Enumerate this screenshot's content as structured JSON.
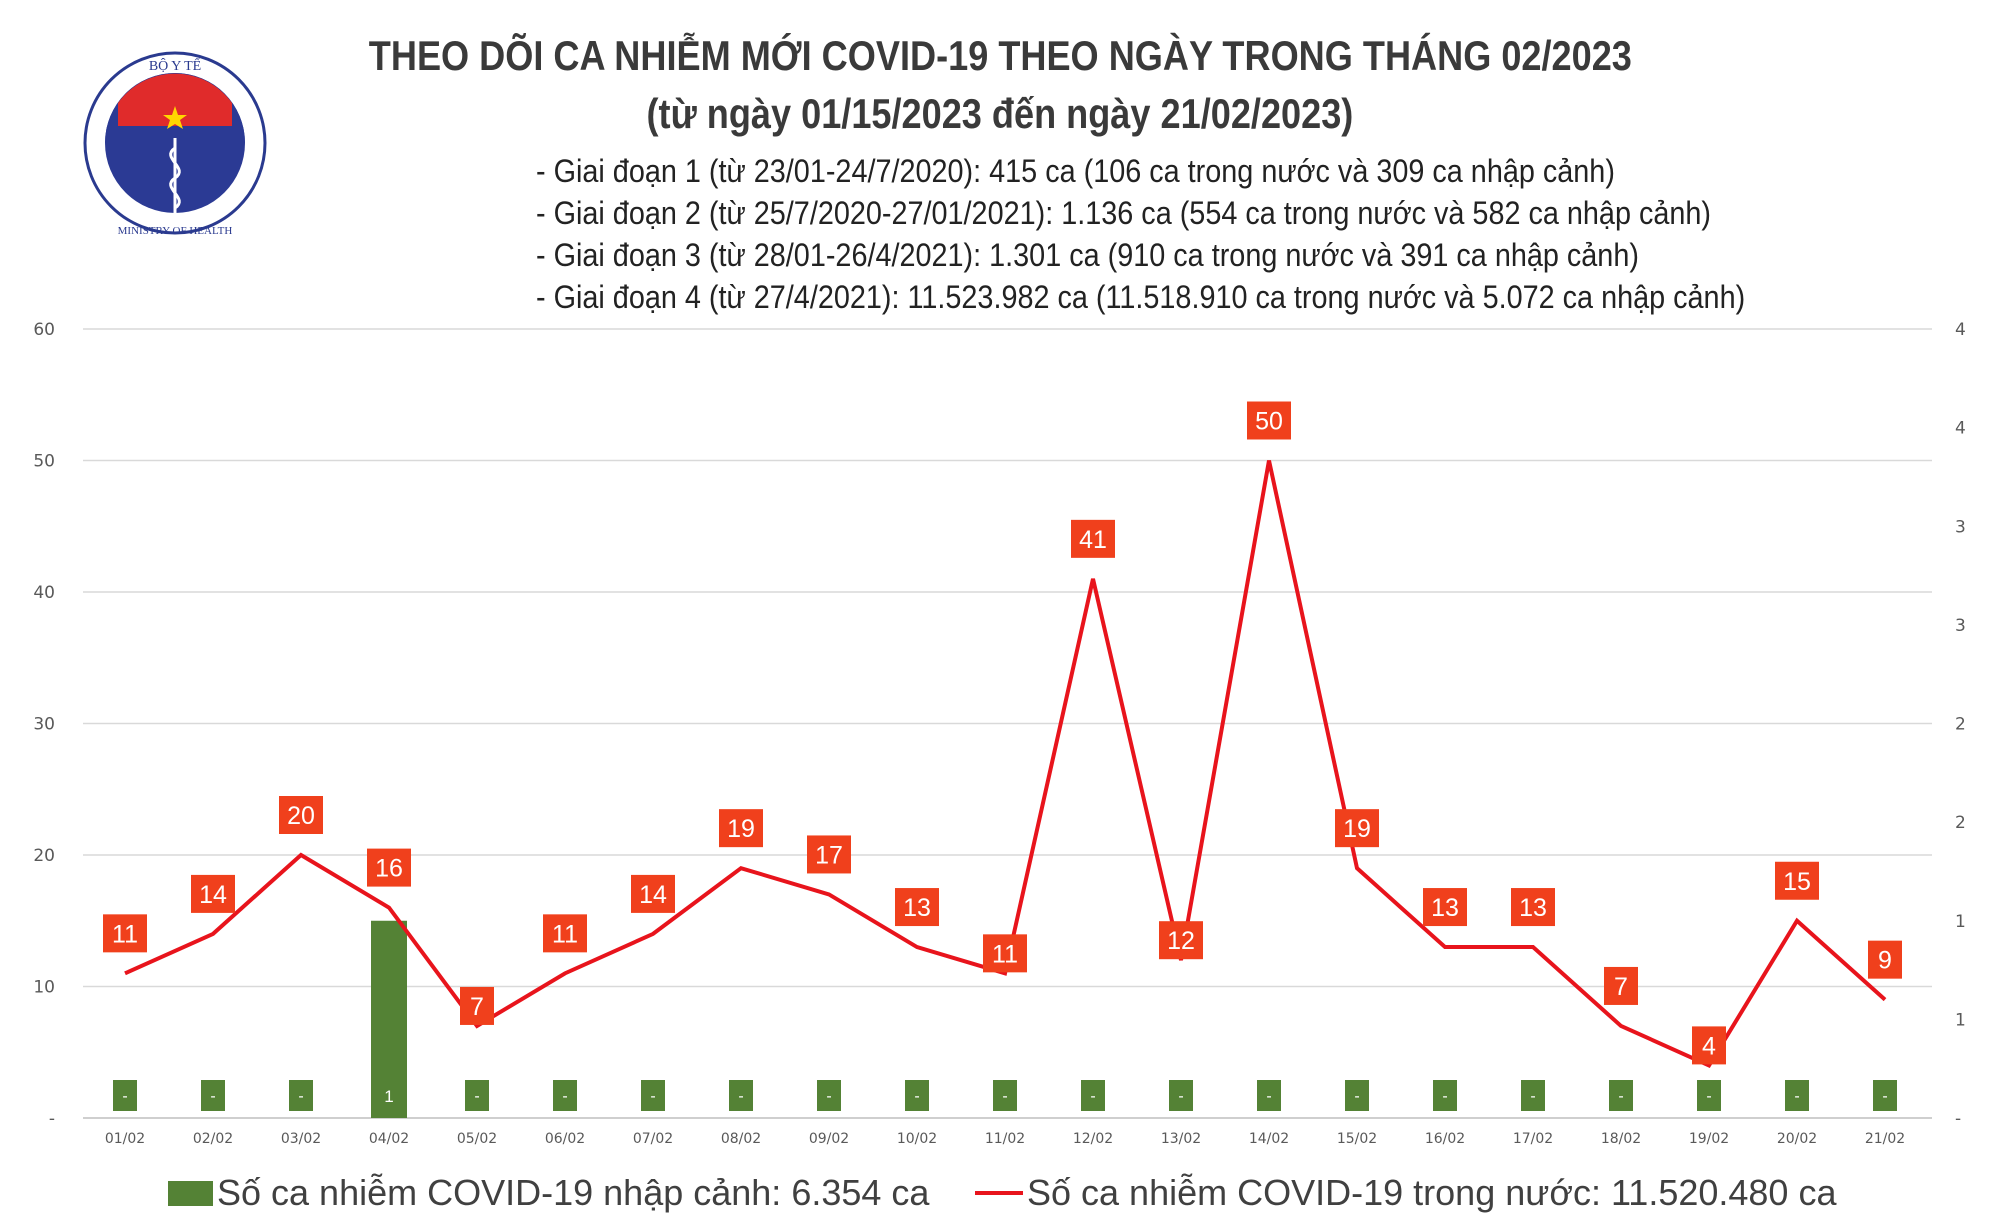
{
  "logo": {
    "text_top": "BỘ Y TẾ",
    "text_bottom": "MINISTRY OF HEALTH"
  },
  "title": {
    "line1": "THEO DÕI CA NHIỄM MỚI COVID-19 THEO NGÀY TRONG THÁNG 02/2023",
    "line2": "(từ ngày 01/15/2023 đến ngày 21/02/2023)"
  },
  "summary": [
    "- Giai đoạn 1 (từ 23/01-24/7/2020): 415 ca (106 ca trong nước và 309 ca nhập cảnh)",
    "- Giai đoạn 2 (từ 25/7/2020-27/01/2021): 1.136 ca (554 ca trong nước và 582 ca nhập cảnh)",
    "- Giai đoạn 3 (từ 28/01-26/4/2021): 1.301 ca (910 ca trong nước và 391 ca nhập cảnh)",
    "- Giai đoạn 4 (từ 27/4/2021): 11.523.982 ca (11.518.910 ca trong nước và 5.072 ca nhập cảnh)"
  ],
  "chart_data": {
    "type": "bar+line",
    "categories": [
      "01/02",
      "02/02",
      "03/02",
      "04/02",
      "05/02",
      "06/02",
      "07/02",
      "08/02",
      "09/02",
      "10/02",
      "11/02",
      "12/02",
      "13/02",
      "14/02",
      "15/02",
      "16/02",
      "17/02",
      "18/02",
      "19/02",
      "20/02",
      "21/02"
    ],
    "series": [
      {
        "name": "Số ca nhiễm COVID-19 nhập cảnh: 6.354 ca",
        "type": "bar",
        "axis": "right",
        "color": "#548235",
        "values": [
          0,
          0,
          0,
          1,
          0,
          0,
          0,
          0,
          0,
          0,
          0,
          0,
          0,
          0,
          0,
          0,
          0,
          0,
          0,
          0,
          0
        ]
      },
      {
        "name": "Số ca nhiễm COVID-19 trong nước: 11.520.480 ca",
        "type": "line",
        "axis": "left",
        "color": "#e8141c",
        "label_color": "#f0401c",
        "values": [
          11,
          14,
          20,
          16,
          7,
          11,
          14,
          19,
          17,
          13,
          11,
          41,
          12,
          50,
          19,
          13,
          13,
          7,
          4,
          15,
          9
        ]
      }
    ],
    "y_left": {
      "range": [
        0,
        60
      ],
      "tick_labels": [
        "-",
        "10",
        "20",
        "30",
        "40",
        "50",
        "60"
      ]
    },
    "y_right": {
      "range": [
        0,
        4
      ],
      "tick_labels": [
        "-",
        "1",
        "1",
        "2",
        "2",
        "3",
        "3",
        "4",
        "4"
      ]
    },
    "zero_label": "-",
    "grid": true,
    "legend_position": "bottom"
  }
}
